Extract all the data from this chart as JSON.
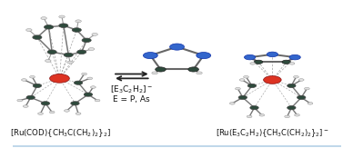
{
  "bg_color": "#cce0ec",
  "bg_top": "#d8eaf4",
  "dark": "#2e4a3c",
  "blue": "#3366cc",
  "red": "#dd3322",
  "white_atom": "#e0e0e0",
  "bond_gray": "#888888",
  "bond_light": "#aaaaaa",
  "label_left": "[Ru(COD){CH$_3$C(CH$_2$)$_2$}$_2$]",
  "label_middle1": "[E$_3$C$_2$H$_2$]$^-$",
  "label_middle2": "E = P, As",
  "label_right": "[Ru(E$_3$C$_2$H$_2$){CH$_3$C(CH$_2$)$_2$}$_2$]$^-$",
  "label_fontsize": 6.5,
  "arrow_fontsize": 6.0
}
